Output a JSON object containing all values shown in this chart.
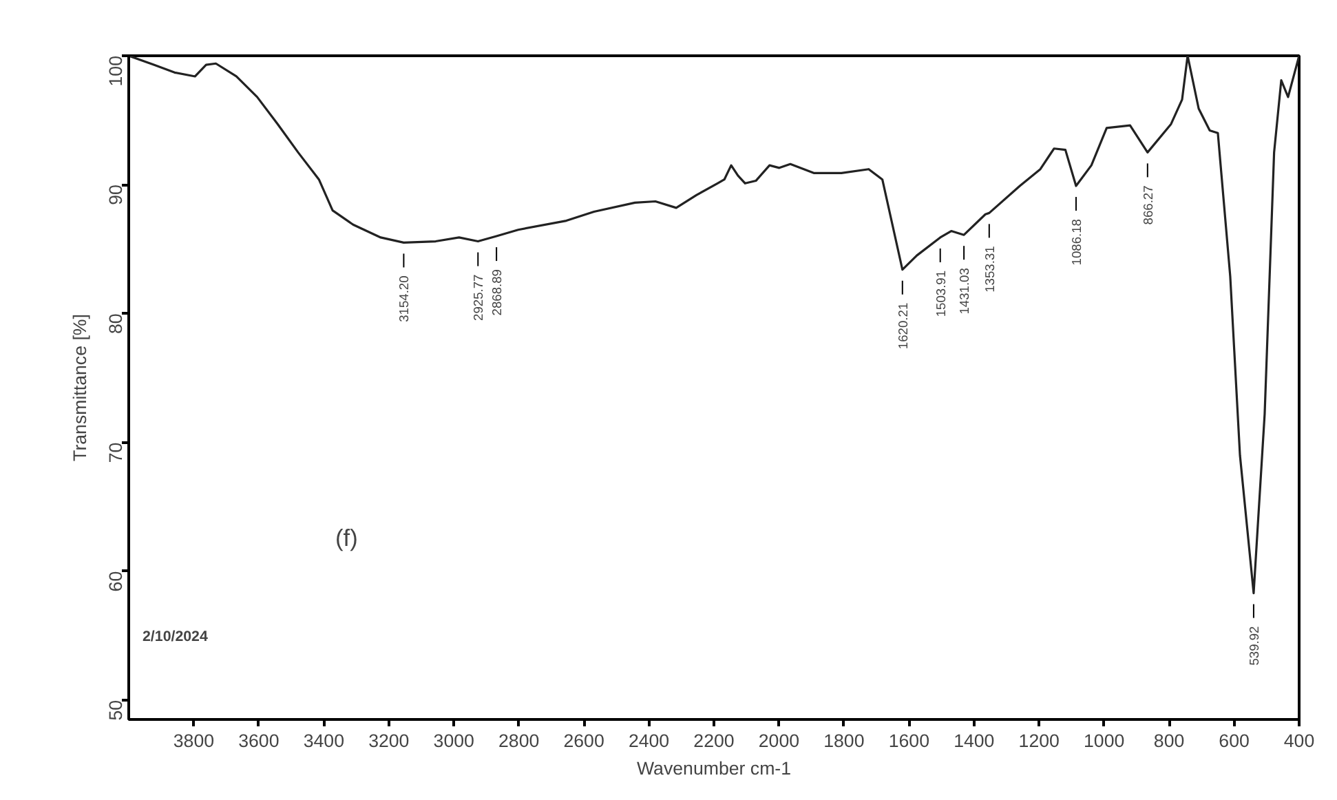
{
  "chart_data": {
    "type": "line",
    "xlabel": "Wavenumber cm-1",
    "ylabel": "Transmittance [%]",
    "xlim": [
      4000,
      400
    ],
    "ylim": [
      48.5,
      100
    ],
    "xticks": [
      3800,
      3600,
      3400,
      3200,
      3000,
      2800,
      2600,
      2400,
      2200,
      2000,
      1800,
      1600,
      1400,
      1200,
      1000,
      800,
      600,
      400
    ],
    "yticks": [
      50,
      60,
      70,
      80,
      90,
      100
    ],
    "grid": false,
    "marker": "none",
    "line_style": "solid",
    "series": [
      {
        "color": "#222222",
        "x": [
          4000,
          3923,
          3859,
          3796,
          3762,
          3732,
          3669,
          3605,
          3542,
          3479,
          3415,
          3373,
          3310,
          3225,
          3154.2,
          3056,
          2984,
          2925.77,
          2868.89,
          2802,
          2654,
          2569,
          2443,
          2380,
          2316,
          2253,
          2189,
          2168,
          2147,
          2126,
          2104,
          2071,
          2029,
          1999,
          1965,
          1893,
          1808,
          1724,
          1682,
          1620.21,
          1576,
          1503.91,
          1470,
          1431.03,
          1365,
          1353.31,
          1259,
          1196,
          1154,
          1119,
          1086.18,
          1039,
          992,
          920,
          866.27,
          794,
          760,
          743,
          709,
          675,
          650,
          612,
          582,
          539.92,
          506,
          477,
          455,
          434,
          400
        ],
        "values": [
          100,
          99.3,
          98.7,
          98.4,
          99.3,
          99.4,
          98.4,
          96.8,
          94.7,
          92.5,
          90.4,
          88.0,
          86.9,
          85.9,
          85.5,
          85.6,
          85.9,
          85.6,
          86.0,
          86.5,
          87.2,
          87.9,
          88.6,
          88.7,
          88.2,
          89.2,
          90.1,
          90.4,
          91.5,
          90.7,
          90.1,
          90.3,
          91.5,
          91.3,
          91.6,
          90.9,
          90.9,
          91.2,
          90.4,
          83.4,
          84.5,
          85.9,
          86.4,
          86.1,
          87.7,
          87.8,
          89.9,
          91.2,
          92.8,
          92.7,
          89.9,
          91.5,
          94.4,
          94.6,
          92.5,
          94.7,
          96.6,
          100,
          95.9,
          94.2,
          94.0,
          82.9,
          69.0,
          58.3,
          72.2,
          92.5,
          98.1,
          96.8,
          100
        ]
      }
    ],
    "annotations": [
      "(f)",
      "2/10/2024",
      {
        "text": "3154.20",
        "x": 3154.2,
        "y": 85.5
      },
      {
        "text": "2925.77",
        "x": 2925.77,
        "y": 85.6
      },
      {
        "text": "2868.89",
        "x": 2868.89,
        "y": 86.0
      },
      {
        "text": "1620.21",
        "x": 1620.21,
        "y": 83.4
      },
      {
        "text": "1503.91",
        "x": 1503.91,
        "y": 85.9
      },
      {
        "text": "1431.03",
        "x": 1431.03,
        "y": 86.1
      },
      {
        "text": "1353.31",
        "x": 1353.31,
        "y": 87.8
      },
      {
        "text": "1086.18",
        "x": 1086.18,
        "y": 89.9
      },
      {
        "text": "866.27",
        "x": 866.27,
        "y": 92.5
      },
      {
        "text": "539.92",
        "x": 539.92,
        "y": 58.3
      }
    ]
  }
}
